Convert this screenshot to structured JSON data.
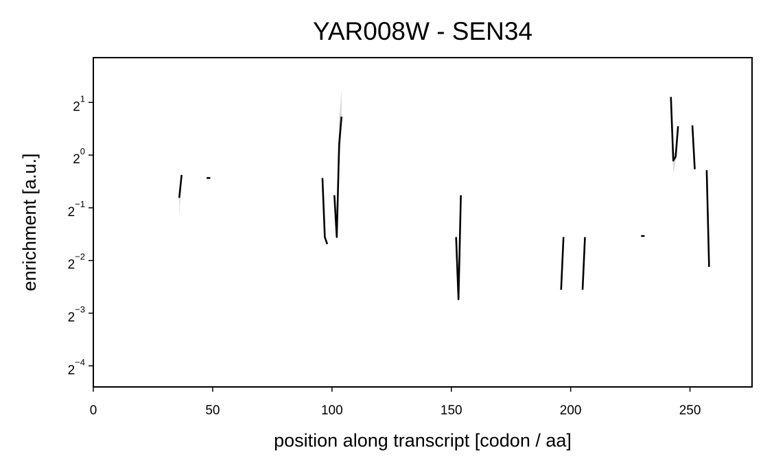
{
  "chart_data": {
    "type": "line",
    "title": "YAR008W - SEN34",
    "xlabel": "position along transcript [codon / aa]",
    "ylabel": "enrichment [a.u.]",
    "xlim": [
      0,
      276
    ],
    "ylim_log2": [
      -4.4,
      1.85
    ],
    "y_scale": "log2",
    "grid": false,
    "legend": "none",
    "x_ticks": [
      {
        "value": 0,
        "label": "0"
      },
      {
        "value": 50,
        "label": "50"
      },
      {
        "value": 100,
        "label": "100"
      },
      {
        "value": 150,
        "label": "150"
      },
      {
        "value": 200,
        "label": "200"
      },
      {
        "value": 250,
        "label": "250"
      }
    ],
    "y_ticks": [
      {
        "exponent": 1,
        "base": "2",
        "label": "1"
      },
      {
        "exponent": 0,
        "base": "2",
        "label": "0"
      },
      {
        "exponent": -1,
        "base": "2",
        "label": "−1"
      },
      {
        "exponent": -2,
        "base": "2",
        "label": "−2"
      },
      {
        "exponent": -3,
        "base": "2",
        "label": "−3"
      },
      {
        "exponent": -4,
        "base": "2",
        "label": "−4"
      }
    ],
    "line_color": "#000000",
    "band_color": "#bdbdbd",
    "series": [
      {
        "x": [
          36,
          37
        ],
        "y": [
          0.57,
          0.77
        ],
        "lower": [
          0.45,
          0.72
        ],
        "upper": [
          0.62,
          0.8
        ]
      },
      {
        "x": [
          47.5,
          49
        ],
        "y": [
          0.74,
          0.74
        ]
      },
      {
        "x": [
          96,
          97,
          98
        ],
        "y": [
          0.74,
          0.34,
          0.31
        ]
      },
      {
        "x": [
          101,
          102,
          103,
          104
        ],
        "y": [
          0.59,
          0.34,
          1.15,
          1.66
        ],
        "lower": [
          0.55,
          0.32,
          0.85,
          1.4
        ],
        "upper": [
          0.62,
          0.37,
          1.6,
          2.35
        ]
      },
      {
        "x": [
          152,
          153,
          154
        ],
        "y": [
          0.34,
          0.15,
          0.59
        ]
      },
      {
        "x": [
          196,
          197
        ],
        "y": [
          0.17,
          0.34
        ]
      },
      {
        "x": [
          205,
          206
        ],
        "y": [
          0.17,
          0.34
        ]
      },
      {
        "x": [
          229.5,
          231
        ],
        "y": [
          0.345,
          0.345
        ]
      },
      {
        "x": [
          242,
          243,
          244,
          245
        ],
        "y": [
          2.15,
          0.93,
          0.98,
          1.46
        ],
        "lower": [
          2.1,
          0.78,
          0.93,
          1.42
        ],
        "upper": [
          2.2,
          1.05,
          1.02,
          1.5
        ]
      },
      {
        "x": [
          251,
          252
        ],
        "y": [
          1.48,
          0.83
        ]
      },
      {
        "x": [
          257,
          258
        ],
        "y": [
          0.82,
          0.23
        ]
      }
    ]
  }
}
